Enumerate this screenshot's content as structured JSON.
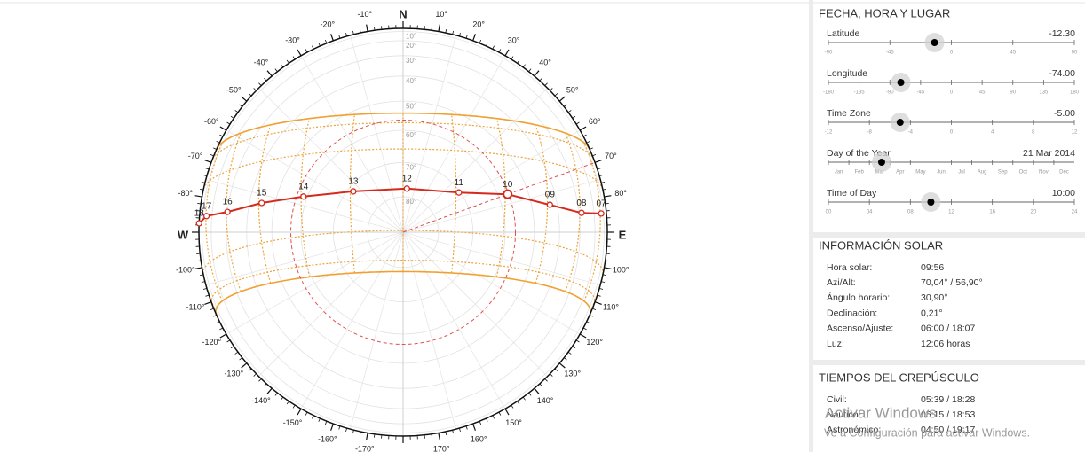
{
  "diagram": {
    "compass": {
      "north": "N",
      "east": "E",
      "west": "W"
    },
    "azimuth_labels": [
      {
        "value": 10,
        "label": "10°"
      },
      {
        "value": 20,
        "label": "20°"
      },
      {
        "value": 30,
        "label": "30°"
      },
      {
        "value": 40,
        "label": "40°"
      },
      {
        "value": 50,
        "label": "50°"
      },
      {
        "value": 60,
        "label": "60°"
      },
      {
        "value": 70,
        "label": "70°"
      },
      {
        "value": 80,
        "label": "80°"
      },
      {
        "value": 100,
        "label": "100°"
      },
      {
        "value": 110,
        "label": "110°"
      },
      {
        "value": 120,
        "label": "120°"
      },
      {
        "value": 130,
        "label": "130°"
      },
      {
        "value": 140,
        "label": "140°"
      },
      {
        "value": 150,
        "label": "150°"
      },
      {
        "value": 160,
        "label": "160°"
      },
      {
        "value": 170,
        "label": "170°"
      },
      {
        "value": -10,
        "label": "-10°"
      },
      {
        "value": -20,
        "label": "-20°"
      },
      {
        "value": -30,
        "label": "-30°"
      },
      {
        "value": -40,
        "label": "-40°"
      },
      {
        "value": -50,
        "label": "-50°"
      },
      {
        "value": -60,
        "label": "-60°"
      },
      {
        "value": -70,
        "label": "-70°"
      },
      {
        "value": -80,
        "label": "-80°"
      },
      {
        "value": -100,
        "label": "-100°"
      },
      {
        "value": -110,
        "label": "-110°"
      },
      {
        "value": -120,
        "label": "-120°"
      },
      {
        "value": -130,
        "label": "-130°"
      },
      {
        "value": -140,
        "label": "-140°"
      },
      {
        "value": -150,
        "label": "-150°"
      },
      {
        "value": -160,
        "label": "-160°"
      },
      {
        "value": -170,
        "label": "-170°"
      }
    ],
    "altitude_labels": [
      {
        "value": 10,
        "label": "10°"
      },
      {
        "value": 20,
        "label": "20°"
      },
      {
        "value": 30,
        "label": "30°"
      },
      {
        "value": 40,
        "label": "40°"
      },
      {
        "value": 50,
        "label": "50°"
      },
      {
        "value": 60,
        "label": "60°"
      },
      {
        "value": 70,
        "label": "70°"
      },
      {
        "value": 80,
        "label": "80°"
      }
    ],
    "sun_path": {
      "hours": [
        "07",
        "08",
        "09",
        "10",
        "11",
        "12",
        "13",
        "14",
        "15",
        "16",
        "17",
        "18"
      ],
      "azimuth": [
        84.6,
        83.8,
        79.4,
        70.0,
        54.5,
        5,
        -50.6,
        -70.3,
        -78.3,
        -83.4,
        -85.3,
        -87.5
      ],
      "altitude": [
        13,
        28.5,
        43,
        57,
        70.4,
        77.6,
        71.6,
        58.8,
        45,
        30,
        15,
        1
      ]
    }
  },
  "panel": {
    "settings_title": "FECHA, HORA Y LUGAR",
    "sliders": [
      {
        "label": "Latitude",
        "value": -12.3,
        "value_label": "-12.30",
        "ticks": [
          -90,
          -45,
          0,
          45,
          90
        ]
      },
      {
        "label": "Longitude",
        "value": -74,
        "value_label": "-74.00",
        "ticks": [
          -180,
          -135,
          -90,
          -45,
          0,
          45,
          90,
          135,
          180
        ]
      },
      {
        "label": "Time Zone",
        "value": -5,
        "value_label": "-5.00",
        "ticks": [
          -12,
          -8,
          -4,
          0,
          4,
          8,
          12
        ]
      },
      {
        "label": "Day of the Year",
        "value": 80,
        "value_label": "21 Mar 2014",
        "xlim": [
          1,
          366
        ],
        "categories": [
          "Jan",
          "Feb",
          "Mar",
          "Apr",
          "May",
          "Jun",
          "Jul",
          "Aug",
          "Sep",
          "Oct",
          "Nov",
          "Dec"
        ]
      },
      {
        "label": "Time of Day",
        "value": 10,
        "value_label": "10:00",
        "ticks": [
          {
            "value": 0,
            "label": "00"
          },
          {
            "value": 4,
            "label": "04"
          },
          {
            "value": 8,
            "label": "08"
          },
          12,
          16,
          20,
          24
        ]
      }
    ],
    "solar_title": "INFORMACIÓN SOLAR",
    "solar_rows": [
      [
        "Hora solar:",
        "09:56"
      ],
      [
        "Azi/Alt:",
        "70,04° / 56,90°"
      ],
      [
        "Ángulo horario:",
        "30,90°"
      ],
      [
        "Declinación:",
        "0,21°"
      ],
      [
        "Ascenso/Ajuste:",
        "06:00 / 18:07"
      ],
      [
        "Luz:",
        "12:06 horas"
      ]
    ],
    "twilight_title": "TIEMPOS DEL CREPÚSCULO",
    "twilight_rows": [
      [
        "Civil:",
        "05:39 / 18:28"
      ],
      [
        "Náutico:",
        "05:15 / 18:53"
      ],
      [
        "Astronómico:",
        "04:50 / 19:17"
      ]
    ]
  },
  "watermark": {
    "title": "Activar Windows",
    "text": "Ve a Configuración para activar Windows."
  }
}
